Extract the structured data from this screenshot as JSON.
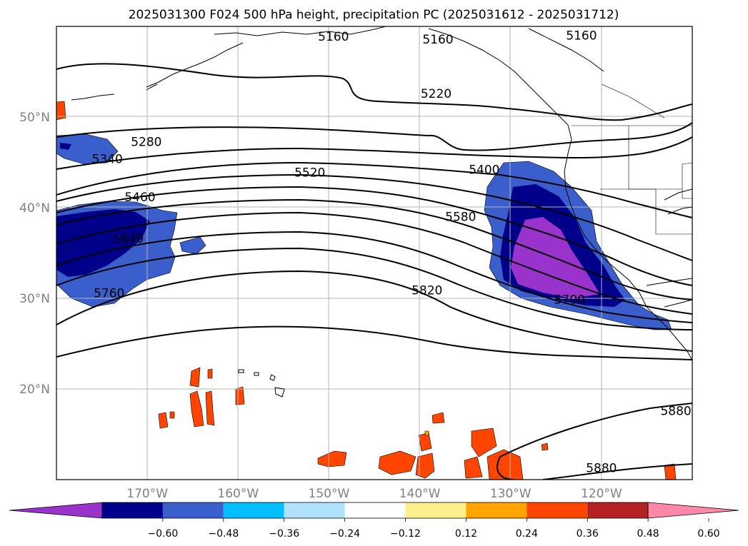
{
  "title": "2025031300 F024 500 hPa height, precipitation PC (2025031612 - 2025031712)",
  "map": {
    "lon_range": [
      -180,
      -110
    ],
    "lat_range": [
      10,
      60
    ],
    "lat_labels": [
      {
        "lat": 50,
        "label": "50°N"
      },
      {
        "lat": 40,
        "label": "40°N"
      },
      {
        "lat": 30,
        "label": "30°N"
      },
      {
        "lat": 20,
        "label": "20°N"
      }
    ],
    "lon_labels": [
      {
        "lon": -170,
        "label": "170°W"
      },
      {
        "lon": -160,
        "label": "160°W"
      },
      {
        "lon": -150,
        "label": "150°W"
      },
      {
        "lon": -140,
        "label": "140°W"
      },
      {
        "lon": -130,
        "label": "130°W"
      },
      {
        "lon": -120,
        "label": "120°W"
      }
    ],
    "contour_labels": [
      {
        "text": "5160",
        "lon": -149.5,
        "lat": 58.9
      },
      {
        "text": "5160",
        "lon": -138.0,
        "lat": 58.6
      },
      {
        "text": "5160",
        "lon": -122.2,
        "lat": 59.0
      },
      {
        "text": "5220",
        "lon": -138.2,
        "lat": 52.6
      },
      {
        "text": "5280",
        "lon": -170.1,
        "lat": 47.3
      },
      {
        "text": "5340",
        "lon": -174.4,
        "lat": 45.4
      },
      {
        "text": "5400",
        "lon": -132.9,
        "lat": 44.2
      },
      {
        "text": "5460",
        "lon": -170.8,
        "lat": 41.2
      },
      {
        "text": "5520",
        "lon": -152.1,
        "lat": 43.9
      },
      {
        "text": "5580",
        "lon": -135.5,
        "lat": 39.0
      },
      {
        "text": "5640",
        "lon": -172.1,
        "lat": 36.6
      },
      {
        "text": "5700",
        "lon": -123.5,
        "lat": 29.9
      },
      {
        "text": "5760",
        "lon": -174.2,
        "lat": 30.6
      },
      {
        "text": "5820",
        "lon": -139.2,
        "lat": 30.9
      },
      {
        "text": "5880",
        "lon": -111.8,
        "lat": 17.6
      },
      {
        "text": "5880",
        "lon": -120.0,
        "lat": 11.3
      }
    ]
  },
  "colorbar": {
    "ticks": [
      "−0.60",
      "−0.48",
      "−0.36",
      "−0.24",
      "−0.12",
      "0.12",
      "0.24",
      "0.36",
      "0.48",
      "0.60"
    ],
    "colors": [
      "#9933cc",
      "#00008b",
      "#3a5fcd",
      "#00bfff",
      "#b0e2ff",
      "#ffffff",
      "#fff08c",
      "#ffa500",
      "#ff4500",
      "#b22222",
      "#ff88aa"
    ]
  }
}
